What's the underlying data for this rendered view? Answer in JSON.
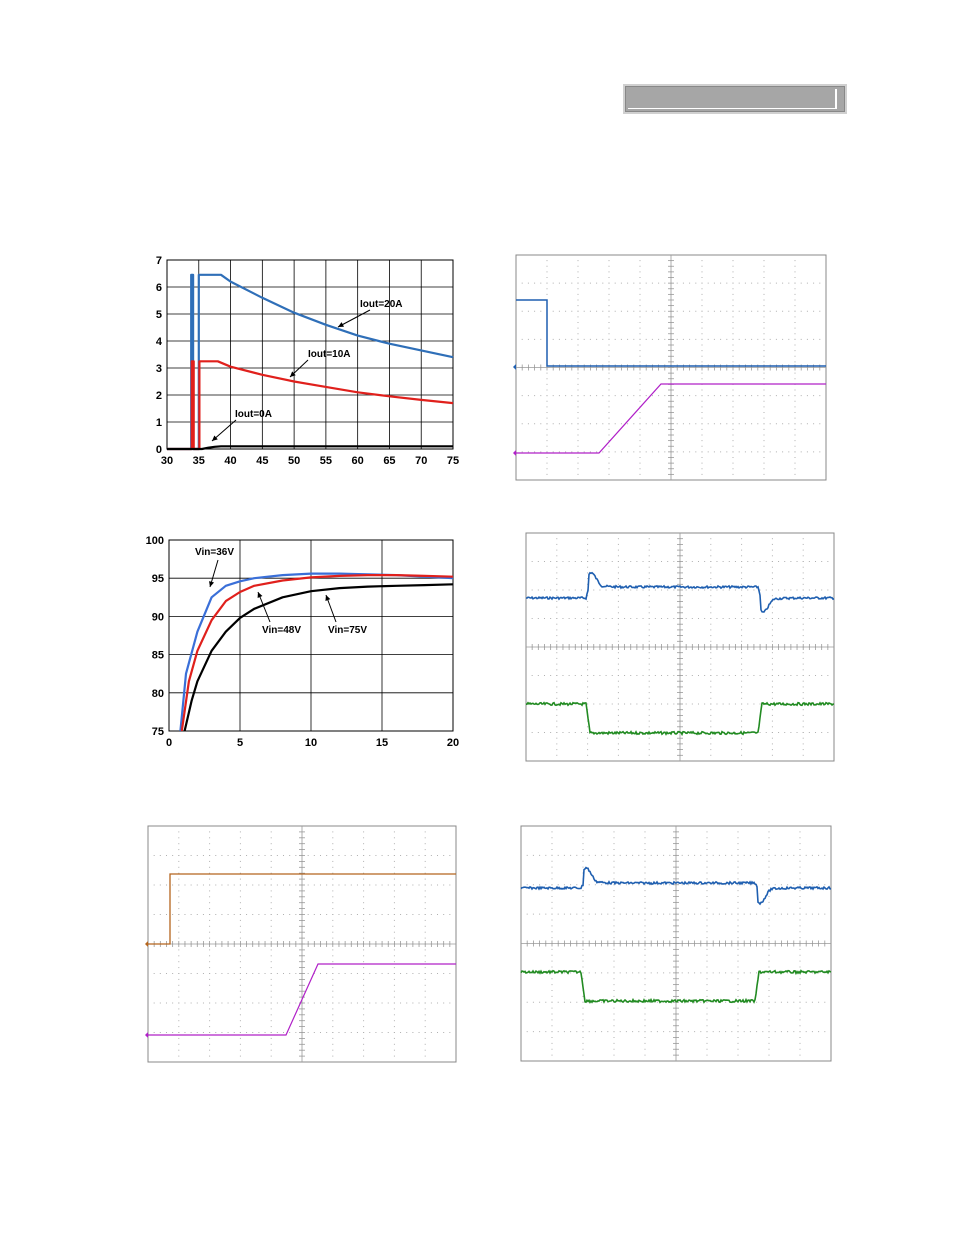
{
  "header": {
    "bar_text": "",
    "bar_color": "#a6a6a6"
  },
  "colors": {
    "blue": "#2f6fb8",
    "red": "#e0201c",
    "black": "#000000",
    "scope_blue": "#1f5fb0",
    "scope_green": "#228b22",
    "scope_magenta": "#b020c8",
    "scope_orange": "#b5651d",
    "scope_grid": "#b0b0b0"
  },
  "chart_data": [
    {
      "type": "line",
      "xlim": [
        30,
        75
      ],
      "ylim": [
        0,
        7
      ],
      "x_ticks": [
        30,
        35,
        40,
        45,
        50,
        55,
        60,
        65,
        70,
        75
      ],
      "y_ticks": [
        0,
        1,
        2,
        3,
        4,
        5,
        6,
        7
      ],
      "grid": true,
      "annotations": [
        "Iout=20A",
        "Iout=10A",
        "Iout=0A"
      ],
      "series": [
        {
          "name": "Iout=20A",
          "color": "#2f6fb8",
          "x": [
            30,
            33.8,
            33.8,
            34.1,
            34.1,
            35.0,
            35.0,
            35.3,
            35.3,
            38.5,
            40,
            45,
            50,
            55,
            60,
            65,
            70,
            75
          ],
          "y": [
            0,
            0,
            6.45,
            6.45,
            0,
            0,
            6.45,
            6.45,
            6.45,
            6.45,
            6.2,
            5.6,
            5.05,
            4.6,
            4.2,
            3.9,
            3.65,
            3.4
          ]
        },
        {
          "name": "Iout=10A",
          "color": "#e0201c",
          "x": [
            30,
            33.9,
            33.9,
            34.2,
            34.2,
            35.1,
            35.1,
            35.4,
            35.4,
            38.0,
            40,
            45,
            50,
            55,
            60,
            65,
            70,
            75
          ],
          "y": [
            0,
            0,
            3.25,
            3.25,
            0,
            0,
            3.25,
            3.25,
            3.25,
            3.25,
            3.05,
            2.75,
            2.5,
            2.3,
            2.1,
            1.95,
            1.82,
            1.7
          ]
        },
        {
          "name": "Iout=0A",
          "color": "#000000",
          "x": [
            30,
            35.5,
            36.5,
            37.5,
            38.5,
            40,
            45,
            50,
            55,
            60,
            65,
            70,
            75
          ],
          "y": [
            0,
            0,
            0.05,
            0.08,
            0.1,
            0.1,
            0.1,
            0.1,
            0.1,
            0.1,
            0.1,
            0.1,
            0.1
          ]
        }
      ]
    },
    {
      "type": "line",
      "xlim": [
        0,
        20
      ],
      "ylim": [
        75,
        100
      ],
      "x_ticks": [
        0,
        5,
        10,
        15,
        20
      ],
      "y_ticks": [
        75,
        80,
        85,
        90,
        95,
        100
      ],
      "grid": true,
      "annotations": [
        "Vin=36V",
        "Vin=48V",
        "Vin=75V"
      ],
      "series": [
        {
          "name": "Vin=36V",
          "color": "#3a6fd8",
          "x": [
            0.8,
            1.2,
            2,
            3,
            4,
            5,
            6,
            8,
            10,
            12,
            14,
            16,
            18,
            20
          ],
          "y": [
            75,
            82.5,
            88,
            92.5,
            94,
            94.6,
            95,
            95.4,
            95.6,
            95.6,
            95.5,
            95.4,
            95.2,
            95.0
          ]
        },
        {
          "name": "Vin=48V",
          "color": "#e0201c",
          "x": [
            0.9,
            1.4,
            2,
            3,
            4,
            5,
            6,
            8,
            10,
            12,
            14,
            16,
            18,
            20
          ],
          "y": [
            75,
            81.5,
            85.5,
            89.5,
            92,
            93.2,
            94,
            94.7,
            95.1,
            95.3,
            95.4,
            95.4,
            95.3,
            95.2
          ]
        },
        {
          "name": "Vin=75V",
          "color": "#000000",
          "x": [
            1.1,
            1.6,
            2,
            3,
            4,
            5,
            6,
            8,
            10,
            12,
            14,
            16,
            18,
            20
          ],
          "y": [
            75,
            79,
            81.5,
            85.5,
            88,
            89.8,
            91,
            92.5,
            93.3,
            93.7,
            93.9,
            94.0,
            94.1,
            94.2
          ]
        }
      ]
    }
  ]
}
